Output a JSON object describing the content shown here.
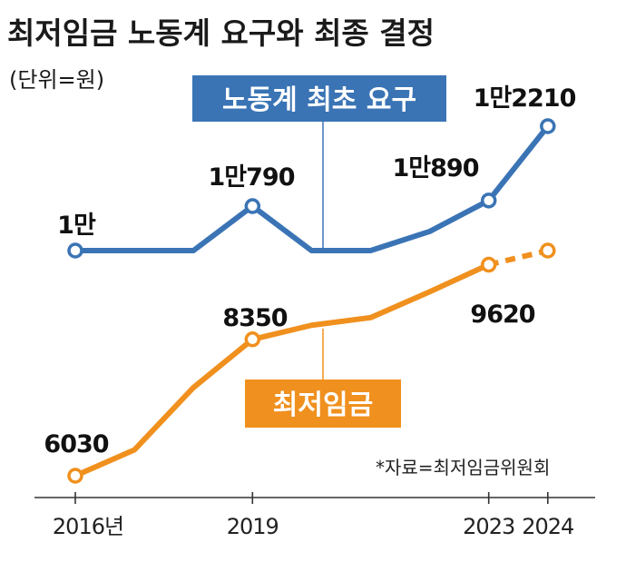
{
  "chart_data": {
    "type": "line",
    "title": "최저임금 노동계 요구와 최종 결정",
    "unit": "(단위=원)",
    "source": "*자료=최저임금위원회",
    "x": [
      2016,
      2017,
      2018,
      2019,
      2020,
      2021,
      2022,
      2023,
      2024
    ],
    "x_tick_labels": [
      {
        "year": 2016,
        "label": "2016년"
      },
      {
        "year": 2019,
        "label": "2019"
      },
      {
        "year": 2023,
        "label": "2023"
      },
      {
        "year": 2024,
        "label": "2024"
      }
    ],
    "series": [
      {
        "name": "노동계 최초 요구",
        "color": "#3a74b5",
        "values": [
          10000,
          10000,
          10000,
          10790,
          10000,
          10000,
          10340,
          10890,
          12210
        ],
        "markers": [
          2016,
          2019,
          2023,
          2024
        ],
        "labels": [
          {
            "year": 2016,
            "text": "1만"
          },
          {
            "year": 2019,
            "text": "1만790"
          },
          {
            "year": 2023,
            "text": "1만890"
          },
          {
            "year": 2024,
            "text": "1만2210"
          }
        ]
      },
      {
        "name": "최저임금",
        "color": "#f0901e",
        "values": [
          6030,
          6470,
          7530,
          8350,
          8590,
          8720,
          9160,
          9620,
          9860
        ],
        "markers": [
          2016,
          2019,
          2023,
          2024
        ],
        "dashed_from": 2023,
        "labels": [
          {
            "year": 2016,
            "text": "6030"
          },
          {
            "year": 2019,
            "text": "8350"
          },
          {
            "year": 2023,
            "text": "9620"
          }
        ]
      }
    ],
    "grid": false
  }
}
